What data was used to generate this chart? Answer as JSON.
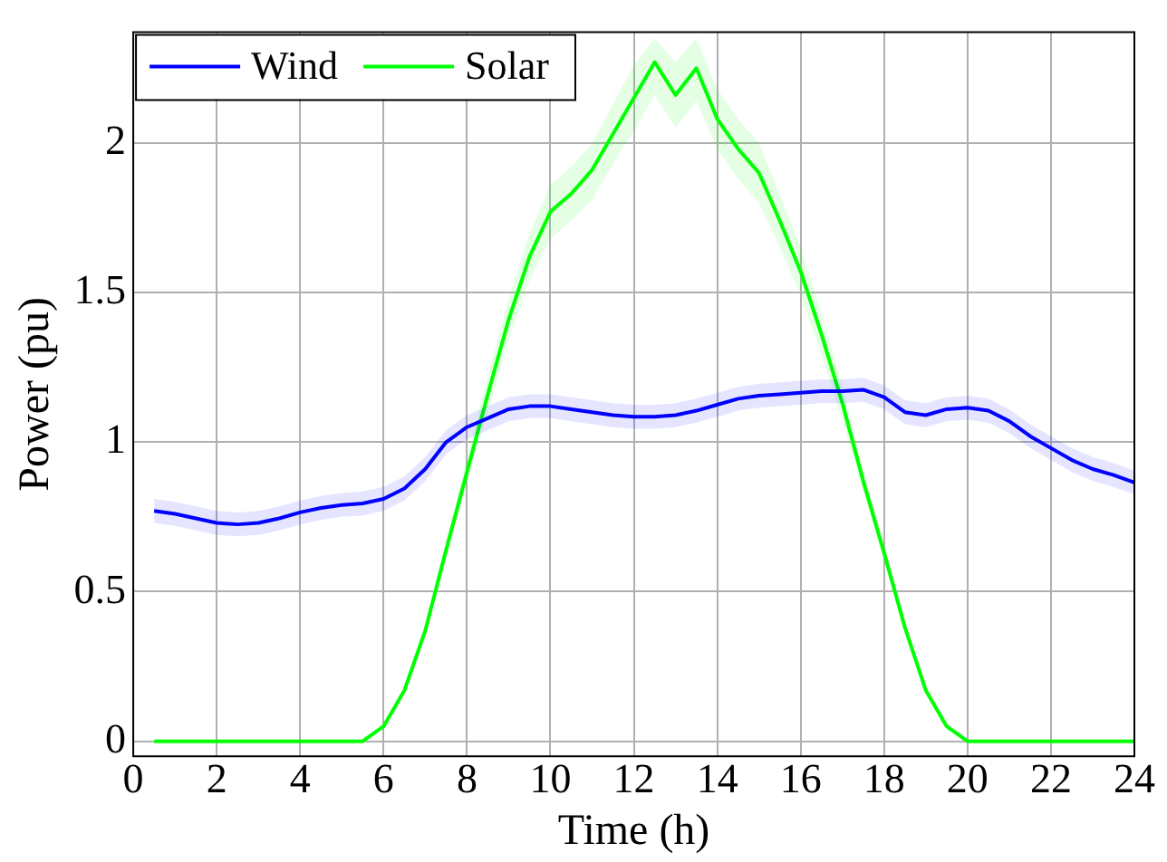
{
  "chart_data": {
    "type": "line",
    "xlabel": "Time (h)",
    "ylabel": "Power (pu)",
    "x": [
      0.5,
      1,
      1.5,
      2,
      2.5,
      3,
      3.5,
      4,
      4.5,
      5,
      5.5,
      6,
      6.5,
      7,
      7.5,
      8,
      8.5,
      9,
      9.5,
      10,
      10.5,
      11,
      11.5,
      12,
      12.5,
      13,
      13.5,
      14,
      14.5,
      15,
      15.5,
      16,
      16.5,
      17,
      17.5,
      18,
      18.5,
      19,
      19.5,
      20,
      20.5,
      21,
      21.5,
      22,
      22.5,
      23,
      23.5,
      24
    ],
    "series": [
      {
        "name": "Wind",
        "color": "#0000ff",
        "values": [
          0.77,
          0.76,
          0.745,
          0.73,
          0.725,
          0.73,
          0.745,
          0.765,
          0.78,
          0.79,
          0.795,
          0.81,
          0.845,
          0.91,
          1.0,
          1.05,
          1.08,
          1.11,
          1.12,
          1.12,
          1.11,
          1.1,
          1.09,
          1.085,
          1.085,
          1.09,
          1.105,
          1.125,
          1.145,
          1.155,
          1.16,
          1.165,
          1.17,
          1.17,
          1.175,
          1.15,
          1.1,
          1.09,
          1.11,
          1.115,
          1.105,
          1.07,
          1.02,
          0.98,
          0.94,
          0.91,
          0.89,
          0.865
        ],
        "upper": [
          0.81,
          0.8,
          0.785,
          0.77,
          0.765,
          0.77,
          0.785,
          0.805,
          0.82,
          0.83,
          0.835,
          0.85,
          0.885,
          0.95,
          1.04,
          1.09,
          1.12,
          1.15,
          1.16,
          1.16,
          1.15,
          1.14,
          1.13,
          1.125,
          1.125,
          1.13,
          1.145,
          1.165,
          1.185,
          1.195,
          1.2,
          1.205,
          1.21,
          1.21,
          1.215,
          1.19,
          1.14,
          1.13,
          1.15,
          1.155,
          1.145,
          1.11,
          1.06,
          1.02,
          0.98,
          0.95,
          0.93,
          0.905
        ],
        "lower": [
          0.73,
          0.72,
          0.705,
          0.69,
          0.685,
          0.69,
          0.705,
          0.725,
          0.74,
          0.75,
          0.755,
          0.77,
          0.805,
          0.87,
          0.96,
          1.01,
          1.04,
          1.07,
          1.08,
          1.08,
          1.07,
          1.06,
          1.05,
          1.045,
          1.045,
          1.05,
          1.065,
          1.085,
          1.105,
          1.115,
          1.12,
          1.125,
          1.13,
          1.13,
          1.135,
          1.11,
          1.06,
          1.05,
          1.07,
          1.075,
          1.065,
          1.03,
          0.98,
          0.94,
          0.9,
          0.87,
          0.85,
          0.825
        ]
      },
      {
        "name": "Solar",
        "color": "#00ff00",
        "values": [
          0,
          0,
          0,
          0,
          0,
          0,
          0,
          0,
          0,
          0,
          0,
          0.05,
          0.17,
          0.37,
          0.64,
          0.9,
          1.16,
          1.41,
          1.62,
          1.77,
          1.83,
          1.91,
          2.03,
          2.15,
          2.27,
          2.16,
          2.25,
          2.08,
          1.98,
          1.9,
          1.74,
          1.57,
          1.36,
          1.13,
          0.87,
          0.63,
          0.38,
          0.17,
          0.05,
          0,
          0,
          0,
          0,
          0,
          0,
          0,
          0,
          0
        ],
        "upper": [
          0,
          0,
          0,
          0,
          0,
          0,
          0,
          0,
          0,
          0,
          0,
          0.055,
          0.18,
          0.39,
          0.67,
          0.95,
          1.22,
          1.48,
          1.7,
          1.86,
          1.92,
          2.0,
          2.13,
          2.26,
          2.35,
          2.27,
          2.35,
          2.18,
          2.08,
          2.0,
          1.83,
          1.65,
          1.43,
          1.19,
          0.91,
          0.66,
          0.4,
          0.18,
          0.055,
          0,
          0,
          0,
          0,
          0,
          0,
          0,
          0,
          0
        ],
        "lower": [
          0,
          0,
          0,
          0,
          0,
          0,
          0,
          0,
          0,
          0,
          0,
          0.045,
          0.16,
          0.35,
          0.61,
          0.86,
          1.1,
          1.34,
          1.54,
          1.68,
          1.74,
          1.81,
          1.93,
          2.04,
          2.16,
          2.05,
          2.14,
          1.98,
          1.88,
          1.8,
          1.65,
          1.49,
          1.29,
          1.07,
          0.83,
          0.6,
          0.36,
          0.16,
          0.045,
          0,
          0,
          0,
          0,
          0,
          0,
          0,
          0,
          0
        ]
      }
    ],
    "xlim": [
      0,
      24
    ],
    "xticks": [
      0,
      2,
      4,
      6,
      8,
      10,
      12,
      14,
      16,
      18,
      20,
      22,
      24
    ],
    "ylim": [
      -0.05,
      2.37
    ],
    "yticks": [
      0,
      0.5,
      1,
      1.5,
      2
    ],
    "grid": true,
    "legend": "top left",
    "marker": "none",
    "line_style": "solid"
  }
}
